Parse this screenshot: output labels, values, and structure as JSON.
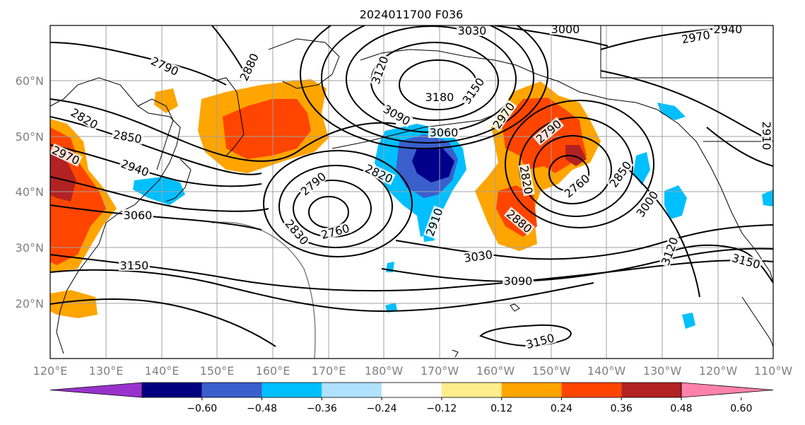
{
  "title": "2024011700 F036",
  "map": {
    "lon_labels": [
      "120°E",
      "130°E",
      "140°E",
      "150°E",
      "160°E",
      "170°E",
      "180°W",
      "170°W",
      "160°W",
      "150°W",
      "140°W",
      "130°W",
      "120°W",
      "110°W"
    ],
    "lat_labels": [
      "60°N",
      "50°N",
      "40°N",
      "30°N",
      "20°N"
    ],
    "contour_labels": [
      "3030",
      "3000",
      "2970",
      "2940",
      "2790",
      "2880",
      "3120",
      "3180",
      "3150",
      "2820",
      "2850",
      "2970",
      "2940",
      "3090",
      "3060",
      "2790",
      "2820",
      "2790",
      "2970",
      "2820",
      "2760",
      "2850",
      "3000",
      "3060",
      "2760",
      "2910",
      "2830",
      "2880",
      "3030",
      "3120",
      "3150",
      "3150",
      "3090",
      "3150",
      "2910"
    ],
    "colors": {
      "shade_orange": "#ffa500",
      "shade_redorange": "#ff4500",
      "shade_darkred": "#b22222",
      "shade_blue": "#00bfff",
      "shade_mid_blue": "#3a5fcd",
      "shade_navy": "#00008b"
    }
  },
  "colorbar": {
    "ticks": [
      "−0.60",
      "−0.48",
      "−0.36",
      "−0.24",
      "−0.12",
      "0.12",
      "0.24",
      "0.36",
      "0.48",
      "0.60"
    ],
    "colors": [
      "#9932cc",
      "#000080",
      "#3a5fcd",
      "#00bfff",
      "#b0e2ff",
      "#ffffff",
      "#ffec8b",
      "#ffa500",
      "#ff4500",
      "#b22222",
      "#ff82ab"
    ]
  }
}
